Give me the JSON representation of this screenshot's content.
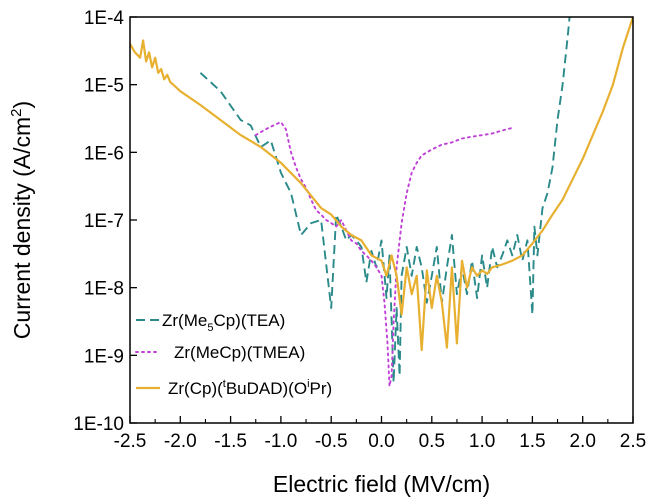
{
  "chart_data": {
    "type": "line",
    "xlabel": "Electric field (MV/cm)",
    "ylabel": "Current density (A/cm",
    "ylabel_sup": "2",
    "ylabel_end": ")",
    "y_scale": "log",
    "xlim": [
      -2.5,
      2.5
    ],
    "ylim": [
      1e-10,
      0.0001
    ],
    "x_ticks": [
      -2.5,
      -2.0,
      -1.5,
      -1.0,
      -0.5,
      0.0,
      0.5,
      1.0,
      1.5,
      2.0,
      2.5
    ],
    "x_tick_labels": [
      "-2.5",
      "-2.0",
      "-1.5",
      "-1.0",
      "-0.5",
      "0.0",
      "0.5",
      "1.0",
      "1.5",
      "2.0",
      "2.5"
    ],
    "y_ticks": [
      1e-10,
      1e-09,
      1e-08,
      1e-07,
      1e-06,
      1e-05,
      0.0001
    ],
    "y_tick_labels": [
      "1E-10",
      "1E-9",
      "1E-8",
      "1E-7",
      "1E-6",
      "1E-5",
      "1E-4"
    ],
    "grid": false,
    "legend_position": "bottom-left",
    "series": [
      {
        "legend_parts": [
          "Zr(Me",
          "5",
          "Cp)(TEA)"
        ],
        "legend_styles": [
          "",
          "sub",
          ""
        ],
        "color": "#2a8a8a",
        "dash": "dashed",
        "x": [
          -1.8,
          -1.6,
          -1.4,
          -1.3,
          -1.2,
          -1.1,
          -1.0,
          -0.9,
          -0.8,
          -0.7,
          -0.6,
          -0.5,
          -0.45,
          -0.4,
          -0.35,
          -0.3,
          -0.25,
          -0.2,
          -0.15,
          -0.1,
          -0.05,
          0.0,
          0.05,
          0.08,
          0.12,
          0.15,
          0.18,
          0.2,
          0.25,
          0.3,
          0.35,
          0.4,
          0.45,
          0.5,
          0.55,
          0.6,
          0.65,
          0.7,
          0.75,
          0.8,
          0.85,
          0.9,
          0.95,
          1.0,
          1.05,
          1.1,
          1.15,
          1.2,
          1.25,
          1.3,
          1.35,
          1.4,
          1.45,
          1.5,
          1.52,
          1.55,
          1.6,
          1.65,
          1.7,
          1.75,
          1.8,
          1.85,
          1.87
        ],
        "y": [
          1.5e-05,
          8e-06,
          3e-06,
          2.5e-06,
          1.2e-06,
          1.5e-06,
          5e-07,
          2.5e-07,
          6e-08,
          9e-08,
          1e-07,
          5e-09,
          1.2e-07,
          8e-08,
          5e-08,
          6e-08,
          5e-08,
          4e-08,
          1.2e-08,
          3.5e-08,
          2e-08,
          5e-08,
          7e-09,
          3e-08,
          4e-10,
          5e-09,
          5e-10,
          1.5e-08,
          4e-08,
          1.5e-08,
          4e-08,
          2e-08,
          6e-09,
          1.5e-08,
          4e-08,
          6e-09,
          2e-08,
          6e-08,
          8e-09,
          2e-08,
          8e-09,
          2.5e-08,
          7e-09,
          3e-08,
          1e-08,
          4e-08,
          2e-08,
          3e-08,
          5e-08,
          3e-08,
          6e-08,
          2.5e-08,
          5e-08,
          4e-09,
          8e-08,
          3e-08,
          1.5e-07,
          2.5e-07,
          6e-07,
          3e-06,
          1e-05,
          5e-05,
          0.0001
        ]
      },
      {
        "legend_parts": [
          "Zr(MeCp)(TMEA)"
        ],
        "legend_styles": [
          ""
        ],
        "color": "#c040d8",
        "dash": "dotted",
        "x": [
          -1.25,
          -1.15,
          -1.05,
          -1.0,
          -0.95,
          -0.9,
          -0.85,
          -0.8,
          -0.75,
          -0.7,
          -0.65,
          -0.6,
          -0.55,
          -0.5,
          -0.45,
          -0.4,
          -0.35,
          -0.3,
          -0.25,
          -0.2,
          -0.15,
          -0.1,
          -0.05,
          0.0,
          0.03,
          0.06,
          0.08,
          0.1,
          0.12,
          0.15,
          0.2,
          0.25,
          0.3,
          0.35,
          0.4,
          0.5,
          0.6,
          0.7,
          0.8,
          0.9,
          1.0,
          1.1,
          1.2,
          1.3
        ],
        "y": [
          1.8e-06,
          2.2e-06,
          2.6e-06,
          2.8e-06,
          2.2e-06,
          1e-06,
          6e-07,
          4e-07,
          3e-07,
          2e-07,
          1.4e-07,
          1.2e-07,
          1e-07,
          9e-08,
          8e-08,
          1e-07,
          7e-08,
          5e-08,
          4.5e-08,
          3.5e-08,
          3e-08,
          2.5e-08,
          2e-08,
          1.5e-08,
          6e-09,
          1.5e-09,
          3.5e-10,
          5e-10,
          3e-09,
          2e-08,
          9e-08,
          2.5e-07,
          5e-07,
          7e-07,
          9e-07,
          1.1e-06,
          1.3e-06,
          1.4e-06,
          1.6e-06,
          1.7e-06,
          1.8e-06,
          1.9e-06,
          2.1e-06,
          2.3e-06
        ]
      },
      {
        "legend_parts": [
          "Zr(Cp)(",
          "t",
          "BuDAD)(O",
          "i",
          "Pr)"
        ],
        "legend_styles": [
          "",
          "sup",
          "",
          "sup",
          ""
        ],
        "color": "#e8b030",
        "dash": "solid",
        "x": [
          -2.5,
          -2.45,
          -2.4,
          -2.37,
          -2.34,
          -2.31,
          -2.28,
          -2.25,
          -2.22,
          -2.19,
          -2.16,
          -2.13,
          -2.1,
          -2.0,
          -1.8,
          -1.6,
          -1.4,
          -1.2,
          -1.0,
          -0.8,
          -0.6,
          -0.5,
          -0.4,
          -0.3,
          -0.2,
          -0.1,
          0.0,
          0.05,
          0.1,
          0.15,
          0.2,
          0.25,
          0.3,
          0.35,
          0.4,
          0.45,
          0.5,
          0.55,
          0.6,
          0.65,
          0.7,
          0.75,
          0.8,
          0.85,
          0.9,
          0.95,
          1.0,
          1.05,
          1.1,
          1.2,
          1.3,
          1.4,
          1.5,
          1.6,
          1.7,
          1.8,
          1.9,
          2.0,
          2.1,
          2.2,
          2.3,
          2.4,
          2.5
        ],
        "y": [
          4e-05,
          3e-05,
          2.5e-05,
          4.5e-05,
          2.2e-05,
          3e-05,
          1.8e-05,
          2.5e-05,
          1.5e-05,
          1.7e-05,
          1.2e-05,
          1.4e-05,
          1.1e-05,
          8e-06,
          5e-06,
          3e-06,
          1.8e-06,
          1.2e-06,
          7e-07,
          3.5e-07,
          1.5e-07,
          1.2e-07,
          8e-08,
          6e-08,
          5e-08,
          3e-08,
          2.5e-08,
          1.5e-08,
          3e-08,
          1.5e-08,
          4e-09,
          2e-08,
          8e-09,
          1.5e-08,
          1.2e-09,
          1.8e-08,
          5e-09,
          1.5e-08,
          6e-09,
          1.3e-09,
          2e-08,
          1.5e-09,
          2.5e-08,
          1e-08,
          2e-08,
          1.5e-08,
          1.8e-08,
          1.6e-08,
          2e-08,
          2.2e-08,
          2.5e-08,
          3e-08,
          4.5e-08,
          7e-08,
          1.2e-07,
          2e-07,
          4e-07,
          8e-07,
          1.8e-06,
          4e-06,
          1e-05,
          3.5e-05,
          0.0001
        ]
      }
    ]
  }
}
